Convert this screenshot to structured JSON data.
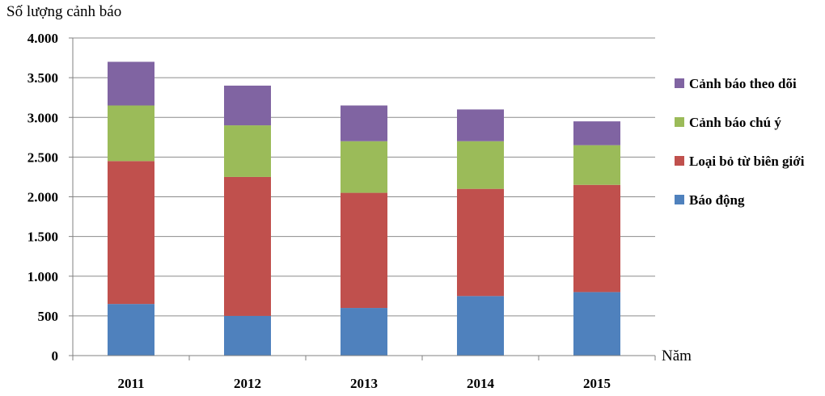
{
  "chart_data": {
    "type": "bar",
    "stacked": true,
    "ylabel": "Số lượng cảnh báo",
    "xlabel": "Năm",
    "categories": [
      "2011",
      "2012",
      "2013",
      "2014",
      "2015"
    ],
    "series": [
      {
        "name": "Báo động",
        "color": "#4F81BD",
        "values": [
          650,
          500,
          600,
          750,
          800
        ]
      },
      {
        "name": "Loại bỏ từ biên giới",
        "color": "#C0504D",
        "values": [
          1800,
          1750,
          1450,
          1350,
          1350
        ]
      },
      {
        "name": "Cảnh báo chú ý",
        "color": "#9BBB59",
        "values": [
          700,
          650,
          650,
          600,
          500
        ]
      },
      {
        "name": "Cảnh báo theo dõi",
        "color": "#8064A2",
        "values": [
          550,
          500,
          450,
          400,
          300
        ]
      }
    ],
    "ylim": [
      0,
      4000
    ],
    "yticks": [
      0,
      500,
      1000,
      1500,
      2000,
      2500,
      3000,
      3500,
      4000
    ],
    "ytick_labels": [
      "0",
      "500",
      "1.000",
      "1.500",
      "2.000",
      "2.500",
      "3.000",
      "3.500",
      "4.000"
    ],
    "grid": true,
    "legend_position": "right",
    "legend_order": [
      "Cảnh báo theo dõi",
      "Cảnh báo chú ý",
      "Loại bỏ từ biên giới",
      "Báo động"
    ]
  }
}
